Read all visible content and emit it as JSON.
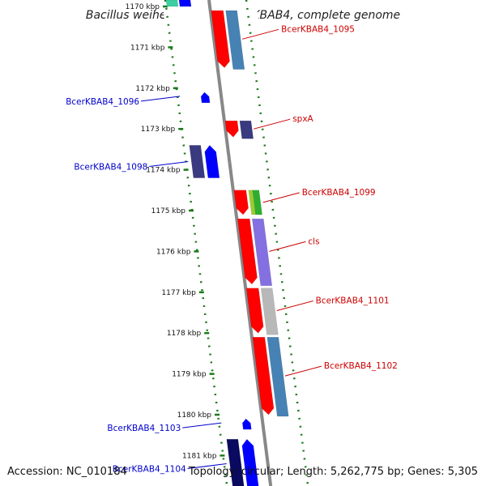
{
  "title": "Bacillus weihenstephanensis KBAB4, complete genome",
  "footer": {
    "accession": "Accession: NC_010184",
    "topology": "Topology: circular; Length: 5,262,775 bp; Genes: 5,305"
  },
  "colors": {
    "forward_label": "#cc0000",
    "reverse_label": "#0000cc",
    "backbone": "#888888",
    "tick": "#1a7a1a",
    "cds_red": "#ff0000",
    "cds_blue": "#0000ff",
    "cds_dark": "#3a3a80",
    "cds_steel": "#4682b4",
    "cds_purple": "#8470e0",
    "cds_gray": "#b8b8b8",
    "cds_green": "#2eae2e",
    "cds_lightgreen": "#9acd32",
    "cds_teal": "#3cd0a0"
  },
  "ticks": [
    {
      "kbp": 1170,
      "label": "1170 kbp"
    },
    {
      "kbp": 1171,
      "label": "1171 kbp"
    },
    {
      "kbp": 1172,
      "label": "1172 kbp"
    },
    {
      "kbp": 1173,
      "label": "1173 kbp"
    },
    {
      "kbp": 1174,
      "label": "1174 kbp"
    },
    {
      "kbp": 1175,
      "label": "1175 kbp"
    },
    {
      "kbp": 1176,
      "label": "1176 kbp"
    },
    {
      "kbp": 1177,
      "label": "1177 kbp"
    },
    {
      "kbp": 1178,
      "label": "1178 kbp"
    },
    {
      "kbp": 1179,
      "label": "1179 kbp"
    },
    {
      "kbp": 1180,
      "label": "1180 kbp"
    },
    {
      "kbp": 1181,
      "label": "1181 kbp"
    }
  ],
  "forward_genes": [
    {
      "id": "fwd-1095",
      "label": "BcerKBAB4_1095",
      "start": 1170.1,
      "end": 1171.5
    },
    {
      "id": "fwd-spxA",
      "label": "spxA",
      "start": 1172.8,
      "end": 1173.2
    },
    {
      "id": "fwd-1099",
      "label": "BcerKBAB4_1099",
      "start": 1174.5,
      "end": 1175.1
    },
    {
      "id": "fwd-cls",
      "label": "cls",
      "start": 1175.2,
      "end": 1176.8
    },
    {
      "id": "fwd-1101",
      "label": "BcerKBAB4_1101",
      "start": 1176.9,
      "end": 1178.0
    },
    {
      "id": "fwd-1102",
      "label": "BcerKBAB4_1102",
      "start": 1178.1,
      "end": 1180.0
    }
  ],
  "reverse_genes": [
    {
      "id": "rev-1096",
      "label": "BcerKBAB4_1096",
      "start": 1172.1,
      "end": 1172.3
    },
    {
      "id": "rev-1098",
      "label": "BcerKBAB4_1098",
      "start": 1173.4,
      "end": 1174.2
    },
    {
      "id": "rev-1103",
      "label": "BcerKBAB4_1103",
      "start": 1180.1,
      "end": 1180.3
    },
    {
      "id": "rev-1104",
      "label": "BcerKBAB4_1104",
      "start": 1180.6,
      "end": 1181.8
    }
  ]
}
